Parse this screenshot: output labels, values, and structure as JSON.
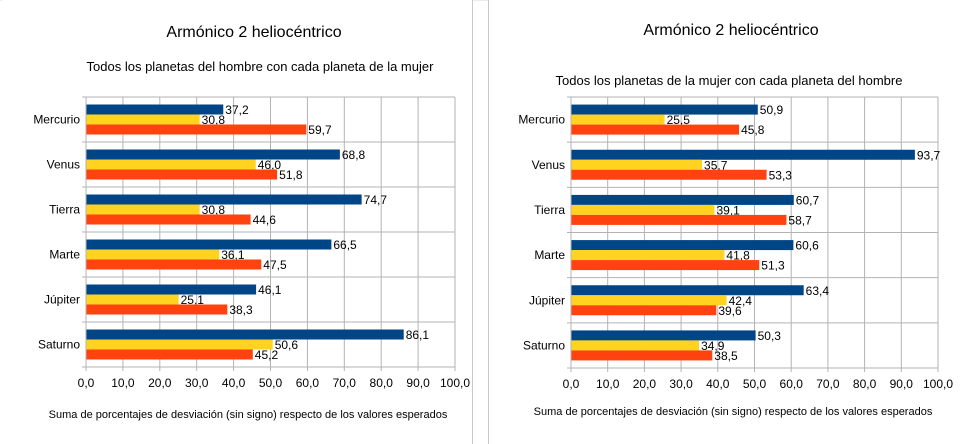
{
  "colors": {
    "series_1": "#004586",
    "series_2": "#ffd320",
    "series_3": "#ff420e",
    "grid": "#b3b3b3",
    "axis": "#b3b3b3"
  },
  "chart_data": [
    {
      "type": "bar",
      "orientation": "horizontal",
      "title": "Armónico 2 heliocéntrico",
      "subtitle": "Todos los planetas del hombre con cada planeta de la mujer",
      "xlabel": "Suma de porcentajes de desviación (sin signo) respecto de los valores esperados",
      "xlim": [
        0,
        100
      ],
      "xticks": [
        "0,0",
        "10,0",
        "20,0",
        "30,0",
        "40,0",
        "50,0",
        "60,0",
        "70,0",
        "80,0",
        "90,0",
        "100,0"
      ],
      "grid": true,
      "legend": "none",
      "categories": [
        "Mercurio",
        "Venus",
        "Tierra",
        "Marte",
        "Júpiter",
        "Saturno"
      ],
      "series": [
        {
          "values": [
            37.2,
            68.8,
            74.7,
            66.5,
            46.1,
            86.1
          ],
          "labels": [
            "37,2",
            "68,8",
            "74,7",
            "66,5",
            "46,1",
            "86,1"
          ]
        },
        {
          "values": [
            30.8,
            46.0,
            30.8,
            36.1,
            25.1,
            50.6
          ],
          "labels": [
            "30,8",
            "46,0",
            "30,8",
            "36,1",
            "25,1",
            "50,6"
          ]
        },
        {
          "values": [
            59.7,
            51.8,
            44.6,
            47.5,
            38.3,
            45.2
          ],
          "labels": [
            "59,7",
            "51,8",
            "44,6",
            "47,5",
            "38,3",
            "45,2"
          ]
        }
      ]
    },
    {
      "type": "bar",
      "orientation": "horizontal",
      "title": "Armónico 2 heliocéntrico",
      "subtitle": "Todos los planetas de la mujer con cada planeta del hombre",
      "xlabel": "Suma de porcentajes de desviación (sin signo) respecto de los valores esperados",
      "xlim": [
        0,
        100
      ],
      "xticks": [
        "0,0",
        "10,0",
        "20,0",
        "30,0",
        "40,0",
        "50,0",
        "60,0",
        "70,0",
        "80,0",
        "90,0",
        "100,0"
      ],
      "grid": true,
      "legend": "none",
      "categories": [
        "Mercurio",
        "Venus",
        "Tierra",
        "Marte",
        "Júpiter",
        "Saturno"
      ],
      "series": [
        {
          "values": [
            50.9,
            93.7,
            60.7,
            60.6,
            63.4,
            50.3
          ],
          "labels": [
            "50,9",
            "93,7",
            "60,7",
            "60,6",
            "63,4",
            "50,3"
          ]
        },
        {
          "values": [
            25.5,
            35.7,
            39.1,
            41.8,
            42.4,
            34.9
          ],
          "labels": [
            "25,5",
            "35,7",
            "39,1",
            "41,8",
            "42,4",
            "34,9"
          ]
        },
        {
          "values": [
            45.8,
            53.3,
            58.7,
            51.3,
            39.6,
            38.5
          ],
          "labels": [
            "45,8",
            "53,3",
            "58,7",
            "51,3",
            "39,6",
            "38,5"
          ]
        }
      ]
    }
  ]
}
